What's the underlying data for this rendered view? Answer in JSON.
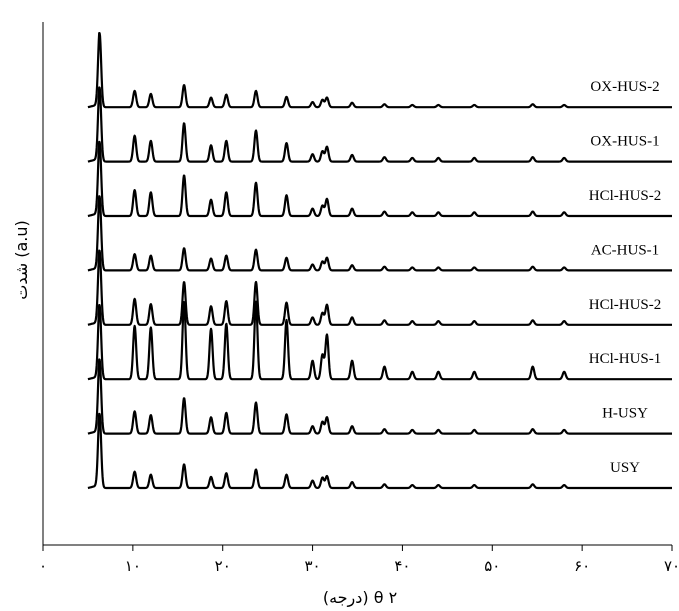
{
  "chart_data": {
    "type": "line",
    "title": "",
    "xlabel": "(درجه) θ ۲",
    "ylabel": "شدت (a.u)",
    "xlim": [
      0,
      70
    ],
    "x_ticks": [
      0,
      10,
      20,
      30,
      40,
      50,
      60,
      70
    ],
    "x_tick_labels": [
      "۰",
      "۱۰",
      "۲۰",
      "۳۰",
      "۴۰",
      "۵۰",
      "۶۰",
      "۷۰"
    ],
    "grid": false,
    "legend": "none",
    "line_color": "#000000",
    "x_start": 5,
    "peak_positions": [
      6.3,
      10.2,
      12.0,
      15.7,
      18.7,
      20.4,
      23.7,
      27.1,
      30.0,
      31.1,
      31.6,
      34.4,
      38.0,
      41.1,
      44.0,
      48.0,
      54.5,
      58.0
    ],
    "series": [
      {
        "name": "USY",
        "peaks": [
          6.3,
          10.2,
          12.0,
          15.7,
          18.7,
          20.4,
          23.7,
          27.1,
          30.0,
          31.1,
          31.6,
          34.4,
          38.0,
          41.1,
          44.0,
          48.0,
          54.5,
          58.0
        ],
        "intensities": [
          1.0,
          0.22,
          0.18,
          0.32,
          0.15,
          0.2,
          0.25,
          0.18,
          0.1,
          0.14,
          0.16,
          0.08,
          0.05,
          0.04,
          0.04,
          0.04,
          0.05,
          0.04
        ]
      },
      {
        "name": "H-USY",
        "peaks": [
          6.3,
          10.2,
          12.0,
          15.7,
          18.7,
          20.4,
          23.7,
          27.1,
          30.0,
          31.1,
          31.6,
          34.4,
          38.0,
          41.1,
          44.0,
          48.0,
          54.5,
          58.0
        ],
        "intensities": [
          1.0,
          0.3,
          0.25,
          0.48,
          0.22,
          0.28,
          0.42,
          0.26,
          0.1,
          0.16,
          0.22,
          0.1,
          0.06,
          0.05,
          0.05,
          0.05,
          0.06,
          0.05
        ]
      },
      {
        "name": "HCl-HUS-1",
        "peaks": [
          6.3,
          10.2,
          12.0,
          15.7,
          18.7,
          20.4,
          23.7,
          27.1,
          30.0,
          31.1,
          31.6,
          34.4,
          38.0,
          41.1,
          44.0,
          48.0,
          54.5,
          58.0
        ],
        "intensities": [
          1.0,
          0.72,
          0.7,
          1.05,
          0.68,
          0.75,
          1.05,
          0.8,
          0.25,
          0.33,
          0.6,
          0.25,
          0.17,
          0.1,
          0.1,
          0.1,
          0.17,
          0.1
        ]
      },
      {
        "name": "HCl-HUS-2",
        "peaks": [
          6.3,
          10.2,
          12.0,
          15.7,
          18.7,
          20.4,
          23.7,
          27.1,
          30.0,
          31.1,
          31.6,
          34.4,
          38.0,
          41.1,
          44.0,
          48.0,
          54.5,
          58.0
        ],
        "intensities": [
          1.0,
          0.35,
          0.28,
          0.58,
          0.25,
          0.32,
          0.58,
          0.3,
          0.1,
          0.16,
          0.27,
          0.1,
          0.06,
          0.05,
          0.05,
          0.05,
          0.06,
          0.05
        ]
      },
      {
        "name": "AC-HUS-1",
        "peaks": [
          6.3,
          10.2,
          12.0,
          15.7,
          18.7,
          20.4,
          23.7,
          27.1,
          30.0,
          31.1,
          31.6,
          34.4,
          38.0,
          41.1,
          44.0,
          48.0,
          54.5,
          58.0
        ],
        "intensities": [
          1.0,
          0.22,
          0.2,
          0.3,
          0.16,
          0.2,
          0.28,
          0.17,
          0.08,
          0.12,
          0.17,
          0.07,
          0.05,
          0.04,
          0.04,
          0.04,
          0.05,
          0.04
        ]
      },
      {
        "name": "HCl-HUS-2",
        "peaks": [
          6.3,
          10.2,
          12.0,
          15.7,
          18.7,
          20.4,
          23.7,
          27.1,
          30.0,
          31.1,
          31.6,
          34.4,
          38.0,
          41.1,
          44.0,
          48.0,
          54.5,
          58.0
        ],
        "intensities": [
          1.0,
          0.35,
          0.32,
          0.55,
          0.22,
          0.32,
          0.45,
          0.28,
          0.1,
          0.14,
          0.23,
          0.1,
          0.06,
          0.05,
          0.05,
          0.05,
          0.06,
          0.05
        ]
      },
      {
        "name": "OX-HUS-1",
        "peaks": [
          6.3,
          10.2,
          12.0,
          15.7,
          18.7,
          20.4,
          23.7,
          27.1,
          30.0,
          31.1,
          31.6,
          34.4,
          38.0,
          41.1,
          44.0,
          48.0,
          54.5,
          58.0
        ],
        "intensities": [
          1.0,
          0.35,
          0.28,
          0.52,
          0.22,
          0.28,
          0.42,
          0.25,
          0.1,
          0.14,
          0.2,
          0.09,
          0.06,
          0.05,
          0.05,
          0.05,
          0.06,
          0.05
        ]
      },
      {
        "name": "OX-HUS-2",
        "peaks": [
          6.3,
          10.2,
          12.0,
          15.7,
          18.7,
          20.4,
          23.7,
          27.1,
          30.0,
          31.1,
          31.6,
          34.4,
          38.0,
          41.1,
          44.0,
          48.0,
          54.5,
          58.0
        ],
        "intensities": [
          1.0,
          0.22,
          0.18,
          0.3,
          0.13,
          0.17,
          0.22,
          0.14,
          0.07,
          0.1,
          0.13,
          0.06,
          0.04,
          0.03,
          0.03,
          0.03,
          0.04,
          0.03
        ]
      }
    ]
  }
}
